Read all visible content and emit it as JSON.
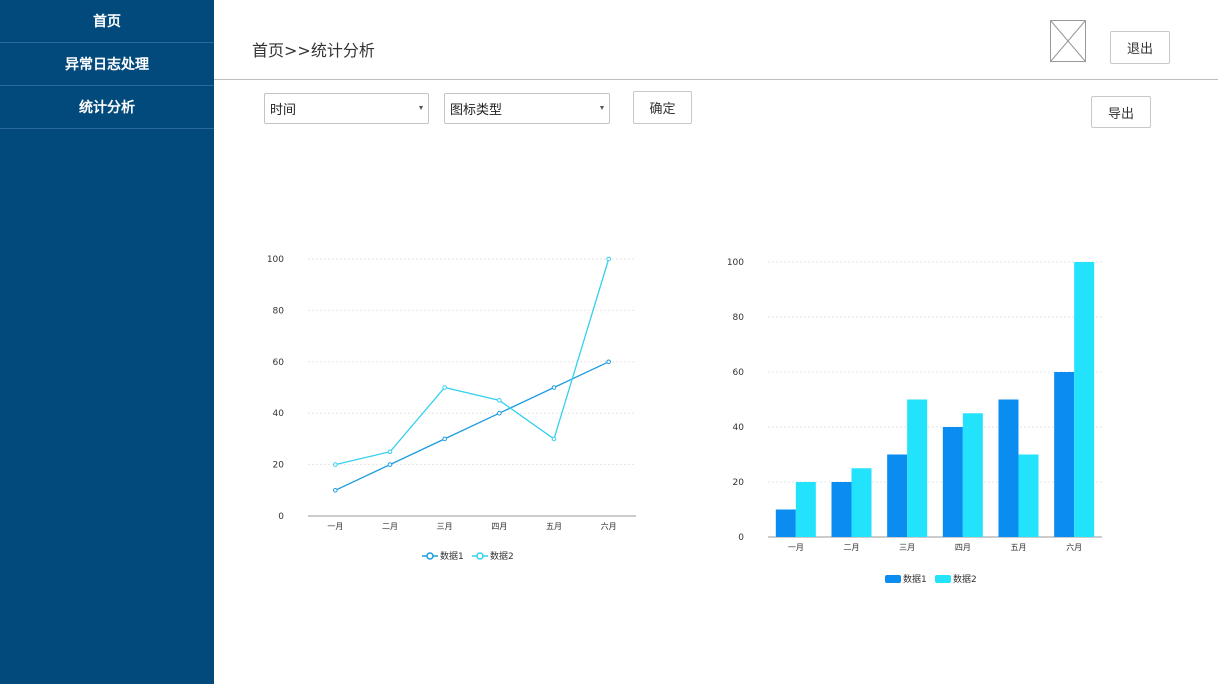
{
  "sidebar": {
    "items": [
      {
        "label": "首页"
      },
      {
        "label": "异常日志处理"
      },
      {
        "label": "统计分析"
      }
    ]
  },
  "header": {
    "breadcrumb": "首页>>统计分析",
    "logout_label": "退出",
    "avatar_icon": "image-placeholder-icon"
  },
  "filters": {
    "time_value": "时间",
    "type_value": "图标类型",
    "confirm_label": "确定",
    "export_label": "导出"
  },
  "colors": {
    "sidebar_bg": "#034a7c",
    "series1": "#1e9ce0",
    "series2": "#35d0ee",
    "bar1": "#0a8cf0",
    "bar2": "#22e3fb"
  },
  "chart_data": [
    {
      "type": "line",
      "categories": [
        "一月",
        "二月",
        "三月",
        "四月",
        "五月",
        "六月"
      ],
      "series": [
        {
          "name": "数据1",
          "values": [
            10,
            20,
            30,
            40,
            50,
            60
          ]
        },
        {
          "name": "数据2",
          "values": [
            20,
            25,
            50,
            45,
            30,
            100
          ]
        }
      ],
      "ylim": [
        0,
        100
      ],
      "yticks": [
        0,
        20,
        40,
        60,
        80,
        100
      ],
      "grid": true,
      "legend": "bottom"
    },
    {
      "type": "bar",
      "categories": [
        "一月",
        "二月",
        "三月",
        "四月",
        "五月",
        "六月"
      ],
      "series": [
        {
          "name": "数据1",
          "values": [
            10,
            20,
            30,
            40,
            50,
            60
          ]
        },
        {
          "name": "数据2",
          "values": [
            20,
            25,
            50,
            45,
            30,
            100
          ]
        }
      ],
      "ylim": [
        0,
        100
      ],
      "yticks": [
        0,
        20,
        40,
        60,
        80,
        100
      ],
      "grid": true,
      "legend": "bottom"
    }
  ]
}
